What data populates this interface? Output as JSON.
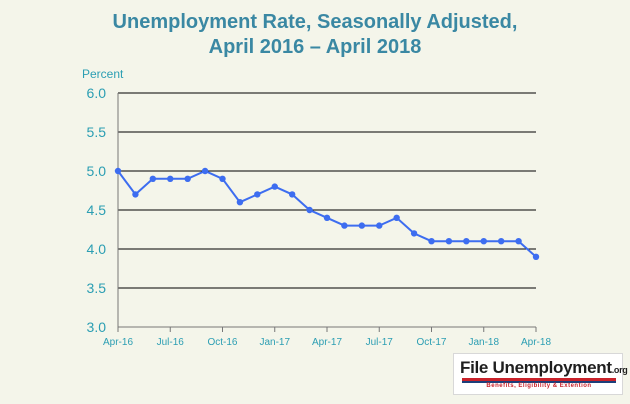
{
  "chart_data": {
    "type": "line",
    "title_line_1": "Unemployment Rate, Seasonally Adjusted,",
    "title_line_2": "April 2016 – April 2018",
    "ylabel": "Percent",
    "xlabel": "",
    "ylim": [
      3.0,
      6.0
    ],
    "y_ticks": [
      "6.0",
      "5.5",
      "5.0",
      "4.5",
      "4.0",
      "3.5",
      "3.0"
    ],
    "x_tick_labels": [
      "Apr-16",
      "Jul-16",
      "Oct-16",
      "Jan-17",
      "Apr-17",
      "Jul-17",
      "Oct-17",
      "Jan-18",
      "Apr-18"
    ],
    "grid": "horizontal",
    "series": [
      {
        "values": [
          5.0,
          4.7,
          4.9,
          4.9,
          4.9,
          5.0,
          4.9,
          4.6,
          4.7,
          4.8,
          4.7,
          4.5,
          4.4,
          4.3,
          4.3,
          4.3,
          4.4,
          4.2,
          4.1,
          4.1,
          4.1,
          4.1,
          4.1,
          4.1,
          3.9
        ],
        "color": "#3d6df0"
      }
    ]
  },
  "logo": {
    "main": "File Unemployment",
    "suffix": ".org",
    "tagline": "Benefits, Eligibility & Extention"
  }
}
